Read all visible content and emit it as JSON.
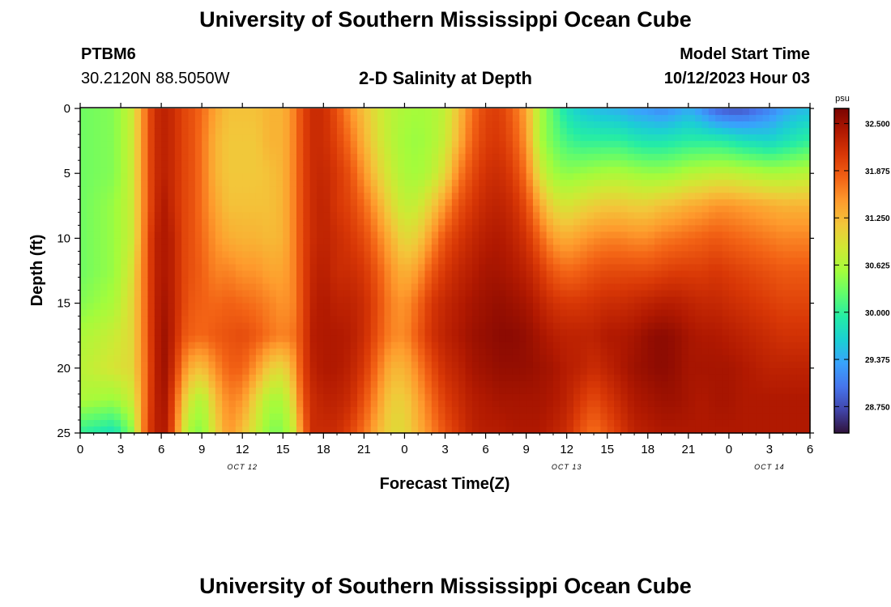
{
  "header": {
    "title": "University of Southern Mississippi Ocean Cube",
    "station_id": "PTBM6",
    "coordinates": "30.2120N  88.5050W",
    "subtitle": "2-D Salinity at Depth",
    "model_start_label": "Model Start Time",
    "model_start_value": "10/12/2023 Hour 03"
  },
  "footer": {
    "title": "University of Southern Mississippi Ocean Cube"
  },
  "chart_data": {
    "type": "heatmap",
    "title": "2-D Salinity at Depth",
    "xlabel": "Forecast Time(Z)",
    "ylabel": "Depth (ft)",
    "x_range_hours": [
      0,
      54
    ],
    "y_range_ft": [
      0,
      25
    ],
    "y_inverted": true,
    "x_tick_labels": [
      "0",
      "3",
      "6",
      "9",
      "12",
      "15",
      "18",
      "21",
      "0",
      "3",
      "6",
      "9",
      "12",
      "15",
      "18",
      "21",
      "0",
      "3",
      "6"
    ],
    "y_tick_labels": [
      "0",
      "5",
      "10",
      "15",
      "20",
      "25"
    ],
    "date_labels": [
      {
        "text": "OCT 12",
        "hour": 12
      },
      {
        "text": "OCT 13",
        "hour": 36
      },
      {
        "text": "OCT 14",
        "hour": 51
      }
    ],
    "colorbar": {
      "unit": "psu",
      "min": 28.4,
      "max": 32.7,
      "tick_labels": [
        "32.500",
        "31.875",
        "31.250",
        "30.625",
        "30.000",
        "29.375",
        "28.750"
      ],
      "colors": [
        "#30123b",
        "#4145ab",
        "#4675ed",
        "#39a2fc",
        "#1bcfd4",
        "#24eca6",
        "#61fc6c",
        "#a4fc3b",
        "#d1e834",
        "#f3c63a",
        "#fe9b2d",
        "#f36315",
        "#d93806",
        "#b11901",
        "#7a0402"
      ]
    },
    "salinity_psu_min": 28.6,
    "salinity_psu_max": 32.62,
    "columns": [
      {
        "hour": 0.0,
        "salinity": [
          30.3,
          30.3,
          30.3,
          30.3,
          30.3,
          30.3,
          30.4,
          30.6,
          30.7,
          30.6,
          30.0
        ]
      },
      {
        "hour": 2.5,
        "salinity": [
          30.4,
          30.4,
          30.4,
          30.5,
          30.5,
          30.5,
          30.6,
          30.8,
          30.9,
          30.5,
          29.8
        ]
      },
      {
        "hour": 3.8,
        "salinity": [
          30.8,
          30.8,
          30.8,
          30.8,
          30.8,
          30.9,
          31.0,
          31.0,
          31.0,
          30.8,
          30.4
        ]
      },
      {
        "hour": 4.4,
        "salinity": [
          31.3,
          31.3,
          31.3,
          31.3,
          31.3,
          31.4,
          31.4,
          31.4,
          31.4,
          31.3,
          31.2
        ]
      },
      {
        "hour": 4.9,
        "salinity": [
          31.75,
          31.75,
          31.75,
          31.75,
          31.8,
          31.8,
          31.8,
          31.8,
          31.75,
          31.8,
          31.9
        ]
      },
      {
        "hour": 5.5,
        "salinity": [
          32.2,
          32.2,
          32.2,
          32.2,
          32.3,
          32.3,
          32.3,
          32.3,
          32.3,
          32.3,
          32.3
        ]
      },
      {
        "hour": 6.2,
        "salinity": [
          32.3,
          32.3,
          32.3,
          32.4,
          32.4,
          32.4,
          32.45,
          32.5,
          32.5,
          32.45,
          32.4
        ]
      },
      {
        "hour": 6.9,
        "salinity": [
          32.2,
          32.2,
          32.2,
          32.2,
          32.3,
          32.3,
          32.3,
          32.3,
          32.2,
          32.0,
          31.9
        ]
      },
      {
        "hour": 7.6,
        "salinity": [
          32.0,
          32.0,
          32.0,
          32.0,
          32.0,
          32.0,
          32.0,
          31.9,
          31.6,
          31.2,
          30.9
        ]
      },
      {
        "hour": 8.3,
        "salinity": [
          31.9,
          31.9,
          31.9,
          31.9,
          31.9,
          31.9,
          31.85,
          31.8,
          31.3,
          30.8,
          30.5
        ]
      },
      {
        "hour": 9.0,
        "salinity": [
          31.75,
          31.7,
          31.7,
          31.7,
          31.75,
          31.8,
          31.8,
          31.75,
          31.2,
          30.6,
          30.4
        ]
      },
      {
        "hour": 10.0,
        "salinity": [
          31.4,
          31.3,
          31.3,
          31.4,
          31.5,
          31.6,
          31.75,
          31.85,
          31.55,
          31.2,
          31.0
        ]
      },
      {
        "hour": 11.0,
        "salinity": [
          31.2,
          31.15,
          31.15,
          31.2,
          31.35,
          31.6,
          31.8,
          31.9,
          31.8,
          31.6,
          31.5
        ]
      },
      {
        "hour": 12.0,
        "salinity": [
          31.2,
          31.15,
          31.15,
          31.2,
          31.3,
          31.5,
          31.75,
          31.95,
          31.8,
          31.5,
          31.2
        ]
      },
      {
        "hour": 13.0,
        "salinity": [
          31.2,
          31.15,
          31.15,
          31.2,
          31.3,
          31.5,
          31.7,
          31.85,
          31.5,
          31.0,
          30.8
        ]
      },
      {
        "hour": 14.0,
        "salinity": [
          31.3,
          31.3,
          31.2,
          31.2,
          31.25,
          31.4,
          31.6,
          31.7,
          31.1,
          30.6,
          30.4
        ]
      },
      {
        "hour": 15.0,
        "salinity": [
          31.3,
          31.3,
          31.3,
          31.3,
          31.3,
          31.4,
          31.5,
          31.6,
          31.0,
          30.6,
          30.4
        ]
      },
      {
        "hour": 15.8,
        "salinity": [
          31.6,
          31.6,
          31.6,
          31.6,
          31.6,
          31.6,
          31.6,
          31.7,
          31.4,
          31.1,
          30.8
        ]
      },
      {
        "hour": 16.5,
        "salinity": [
          32.0,
          32.0,
          32.0,
          32.0,
          32.0,
          32.0,
          32.0,
          32.0,
          32.0,
          31.9,
          31.7
        ]
      },
      {
        "hour": 17.2,
        "salinity": [
          32.2,
          32.2,
          32.2,
          32.2,
          32.2,
          32.25,
          32.3,
          32.35,
          32.3,
          32.2,
          32.2
        ]
      },
      {
        "hour": 18.0,
        "salinity": [
          32.2,
          32.2,
          32.25,
          32.3,
          32.3,
          32.35,
          32.4,
          32.4,
          32.4,
          32.3,
          32.2
        ]
      },
      {
        "hour": 19.0,
        "salinity": [
          31.9,
          32.0,
          32.1,
          32.1,
          32.2,
          32.2,
          32.3,
          32.4,
          32.4,
          32.3,
          32.2
        ]
      },
      {
        "hour": 20.0,
        "salinity": [
          31.5,
          31.7,
          31.9,
          32.0,
          32.1,
          32.2,
          32.3,
          32.35,
          32.3,
          32.2,
          32.0
        ]
      },
      {
        "hour": 21.0,
        "salinity": [
          31.2,
          31.3,
          31.5,
          31.75,
          31.95,
          32.1,
          32.2,
          32.2,
          32.1,
          31.9,
          31.7
        ]
      },
      {
        "hour": 22.0,
        "salinity": [
          30.9,
          30.95,
          31.1,
          31.4,
          31.65,
          31.85,
          31.95,
          31.9,
          31.7,
          31.5,
          31.3
        ]
      },
      {
        "hour": 23.0,
        "salinity": [
          30.7,
          30.7,
          30.8,
          31.0,
          31.3,
          31.5,
          31.6,
          31.6,
          31.3,
          31.1,
          31.0
        ]
      },
      {
        "hour": 24.0,
        "salinity": [
          30.6,
          30.55,
          30.6,
          30.75,
          31.0,
          31.3,
          31.5,
          31.55,
          31.3,
          31.1,
          31.0
        ]
      },
      {
        "hour": 25.0,
        "salinity": [
          30.55,
          30.5,
          30.55,
          30.8,
          31.1,
          31.45,
          31.75,
          31.85,
          31.6,
          31.4,
          31.3
        ]
      },
      {
        "hour": 26.0,
        "salinity": [
          30.6,
          30.6,
          30.7,
          31.1,
          31.5,
          31.85,
          32.1,
          32.15,
          31.95,
          31.75,
          31.6
        ]
      },
      {
        "hour": 27.0,
        "salinity": [
          30.75,
          30.8,
          31.0,
          31.5,
          31.9,
          32.1,
          32.25,
          32.3,
          32.2,
          32.05,
          31.9
        ]
      },
      {
        "hour": 28.0,
        "salinity": [
          31.2,
          31.3,
          31.6,
          31.9,
          32.1,
          32.25,
          32.35,
          32.4,
          32.3,
          32.2,
          32.1
        ]
      },
      {
        "hour": 29.0,
        "salinity": [
          31.7,
          31.8,
          31.95,
          32.1,
          32.25,
          32.35,
          32.45,
          32.5,
          32.45,
          32.35,
          32.3
        ]
      },
      {
        "hour": 30.0,
        "salinity": [
          32.0,
          32.05,
          32.15,
          32.25,
          32.35,
          32.45,
          32.5,
          32.55,
          32.5,
          32.4,
          32.35
        ]
      },
      {
        "hour": 31.0,
        "salinity": [
          32.05,
          32.1,
          32.2,
          32.3,
          32.4,
          32.45,
          32.55,
          32.6,
          32.55,
          32.45,
          32.35
        ]
      },
      {
        "hour": 32.0,
        "salinity": [
          31.8,
          31.9,
          32.05,
          32.2,
          32.3,
          32.4,
          32.5,
          32.6,
          32.55,
          32.45,
          32.4
        ]
      },
      {
        "hour": 33.0,
        "salinity": [
          31.4,
          31.5,
          31.7,
          31.95,
          32.15,
          32.3,
          32.45,
          32.55,
          32.55,
          32.45,
          32.4
        ]
      },
      {
        "hour": 34.0,
        "salinity": [
          30.6,
          30.6,
          30.9,
          31.4,
          31.8,
          32.1,
          32.3,
          32.45,
          32.5,
          32.45,
          32.4
        ]
      },
      {
        "hour": 35.0,
        "salinity": [
          30.2,
          30.3,
          30.55,
          31.0,
          31.45,
          31.85,
          32.15,
          32.35,
          32.45,
          32.4,
          32.3
        ]
      },
      {
        "hour": 36.0,
        "salinity": [
          29.8,
          30.1,
          30.45,
          30.9,
          31.35,
          31.75,
          32.1,
          32.3,
          32.35,
          32.3,
          32.2
        ]
      },
      {
        "hour": 37.0,
        "salinity": [
          29.6,
          30.0,
          30.5,
          31.0,
          31.45,
          31.8,
          32.1,
          32.3,
          32.3,
          32.1,
          31.9
        ]
      },
      {
        "hour": 38.0,
        "salinity": [
          29.5,
          30.0,
          30.55,
          31.1,
          31.55,
          31.9,
          32.15,
          32.3,
          32.2,
          31.95,
          31.7
        ]
      },
      {
        "hour": 39.0,
        "salinity": [
          29.45,
          30.0,
          30.6,
          31.15,
          31.6,
          31.95,
          32.2,
          32.4,
          32.3,
          32.1,
          31.9
        ]
      },
      {
        "hour": 40.0,
        "salinity": [
          29.4,
          30.0,
          30.6,
          31.15,
          31.6,
          31.95,
          32.2,
          32.4,
          32.4,
          32.25,
          32.1
        ]
      },
      {
        "hour": 41.0,
        "salinity": [
          29.3,
          29.9,
          30.55,
          31.1,
          31.55,
          31.95,
          32.25,
          32.45,
          32.5,
          32.4,
          32.3
        ]
      },
      {
        "hour": 42.0,
        "salinity": [
          29.25,
          29.85,
          30.5,
          31.1,
          31.55,
          31.95,
          32.3,
          32.55,
          32.55,
          32.45,
          32.35
        ]
      },
      {
        "hour": 43.0,
        "salinity": [
          29.15,
          29.85,
          30.5,
          31.2,
          31.65,
          32.0,
          32.35,
          32.6,
          32.6,
          32.5,
          32.4
        ]
      },
      {
        "hour": 44.0,
        "salinity": [
          29.25,
          29.9,
          30.55,
          31.25,
          31.7,
          32.05,
          32.35,
          32.55,
          32.55,
          32.5,
          32.4
        ]
      },
      {
        "hour": 45.0,
        "salinity": [
          29.4,
          29.95,
          30.65,
          31.35,
          31.75,
          32.05,
          32.3,
          32.45,
          32.45,
          32.45,
          32.4
        ]
      },
      {
        "hour": 46.0,
        "salinity": [
          29.2,
          29.95,
          30.7,
          31.4,
          31.8,
          32.05,
          32.25,
          32.4,
          32.45,
          32.4,
          32.4
        ]
      },
      {
        "hour": 47.0,
        "salinity": [
          28.9,
          29.95,
          30.75,
          31.5,
          31.85,
          32.1,
          32.25,
          32.4,
          32.45,
          32.45,
          32.4
        ]
      },
      {
        "hour": 48.0,
        "salinity": [
          28.8,
          29.9,
          30.75,
          31.5,
          31.8,
          32.05,
          32.2,
          32.35,
          32.45,
          32.45,
          32.4
        ]
      },
      {
        "hour": 49.0,
        "salinity": [
          28.8,
          29.8,
          30.7,
          31.45,
          31.75,
          32.0,
          32.15,
          32.3,
          32.4,
          32.4,
          32.4
        ]
      },
      {
        "hour": 50.0,
        "salinity": [
          28.95,
          29.75,
          30.65,
          31.4,
          31.7,
          31.95,
          32.1,
          32.25,
          32.35,
          32.4,
          32.4
        ]
      },
      {
        "hour": 51.0,
        "salinity": [
          29.1,
          29.7,
          30.6,
          31.35,
          31.65,
          31.9,
          32.05,
          32.2,
          32.3,
          32.4,
          32.4
        ]
      },
      {
        "hour": 52.0,
        "salinity": [
          29.3,
          29.8,
          30.6,
          31.3,
          31.6,
          31.85,
          32.0,
          32.15,
          32.3,
          32.4,
          32.4
        ]
      },
      {
        "hour": 53.0,
        "salinity": [
          29.45,
          29.9,
          30.65,
          31.3,
          31.6,
          31.85,
          32.0,
          32.15,
          32.3,
          32.4,
          32.4
        ]
      },
      {
        "hour": 54.0,
        "salinity": [
          29.5,
          30.0,
          30.7,
          31.3,
          31.6,
          31.85,
          32.0,
          32.15,
          32.3,
          32.4,
          32.4
        ]
      }
    ],
    "depth_levels_ft": [
      0,
      2.5,
      5,
      7.5,
      10,
      12.5,
      15,
      17.5,
      20,
      22.5,
      25
    ]
  }
}
